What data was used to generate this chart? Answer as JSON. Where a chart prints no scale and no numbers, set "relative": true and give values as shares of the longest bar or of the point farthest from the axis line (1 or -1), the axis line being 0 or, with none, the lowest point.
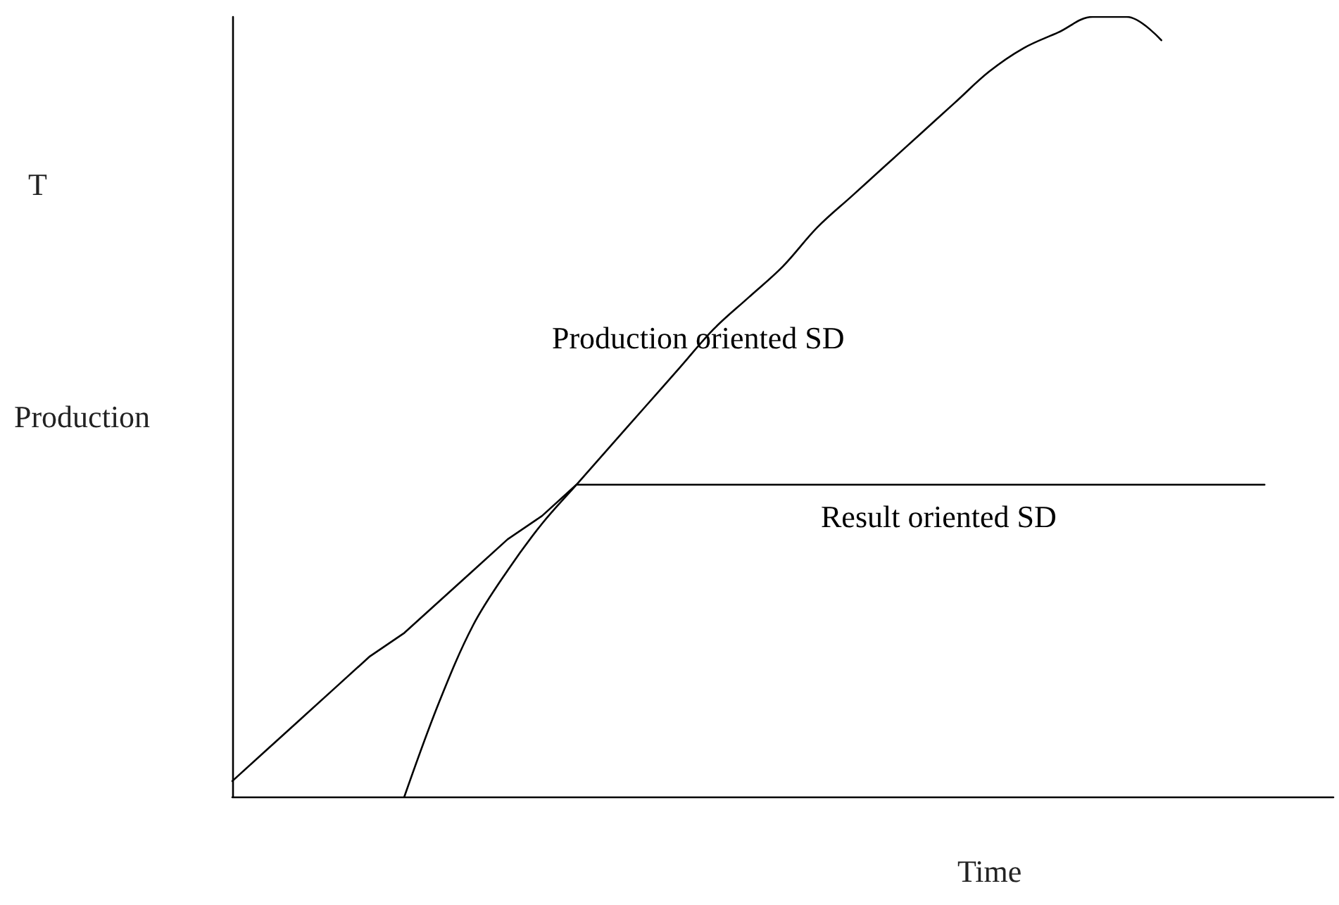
{
  "chart_data": {
    "type": "line",
    "relative": true,
    "xlabel": "Time",
    "ylabel": "Production",
    "annotations": [
      "T"
    ],
    "legend": false,
    "grid": false,
    "marker": "none",
    "line_style": "solid",
    "categories": [
      null,
      null,
      null,
      null,
      null,
      null,
      null,
      null,
      null,
      null,
      null,
      null,
      null,
      null,
      null,
      null,
      null,
      null,
      null,
      null,
      null,
      null,
      null,
      null,
      null,
      null,
      null,
      null,
      null,
      null,
      null,
      null,
      null
    ],
    "series": [
      {
        "name": "Production oriented SD",
        "color": "#000000",
        "values": [
          null,
          null,
          null,
          null,
          null,
          0,
          0.12,
          0.22,
          0.29,
          0.35,
          0.4,
          0.45,
          0.5,
          0.55,
          0.6,
          0.64,
          0.68,
          0.73,
          0.77,
          0.81,
          0.85,
          0.89,
          0.93,
          0.96,
          0.98,
          1.0,
          1.0,
          0.97,
          null,
          null,
          null,
          null,
          null
        ]
      },
      {
        "name": "Result oriented SD",
        "color": "#000000",
        "values": [
          0.02,
          0.06,
          0.1,
          0.14,
          0.18,
          0.21,
          0.25,
          0.29,
          0.33,
          0.36,
          0.4,
          0.4,
          0.4,
          0.4,
          0.4,
          0.4,
          0.4,
          0.4,
          0.4,
          0.4,
          0.4,
          0.4,
          0.4,
          0.4,
          0.4,
          0.4,
          0.4,
          0.4,
          0.4,
          0.4,
          0.4,
          null,
          null
        ]
      }
    ]
  }
}
